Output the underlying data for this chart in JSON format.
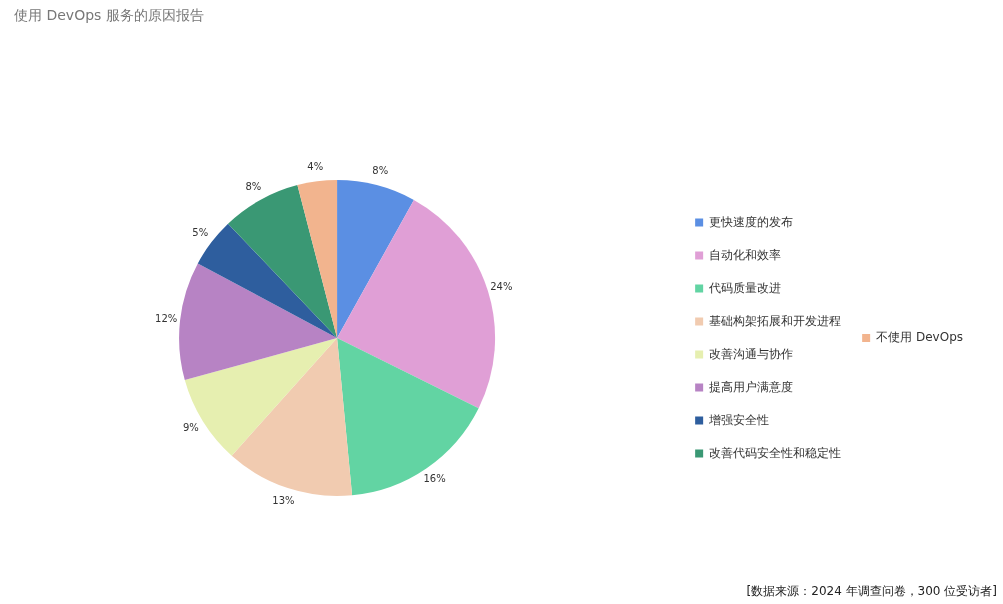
{
  "chart_data": {
    "type": "pie",
    "title": "使用 DevOps 服务的原因报告",
    "categories": [
      "更快速度的发布",
      "自动化和效率",
      "代码质量改进",
      "基础构架拓展和开发进程",
      "改善沟通与协作",
      "提高用户满意度",
      "增强安全性",
      "改善代码安全性和稳定性",
      "不使用 DevOps"
    ],
    "values": [
      8,
      24,
      16,
      13,
      9,
      12,
      5,
      8,
      4
    ],
    "value_labels": [
      "8%",
      "24%",
      "16%",
      "13%",
      "9%",
      "12%",
      "5%",
      "8%",
      "4%"
    ],
    "colors": [
      "#5b8fe3",
      "#e09fd6",
      "#62d4a3",
      "#f1cbb0",
      "#e6efb0",
      "#b783c4",
      "#2e5e9e",
      "#3a9874",
      "#f2b48e"
    ],
    "legend": "right",
    "annotations": [
      "[数据来源：2024 年调查问卷，300 位受访者]"
    ]
  }
}
